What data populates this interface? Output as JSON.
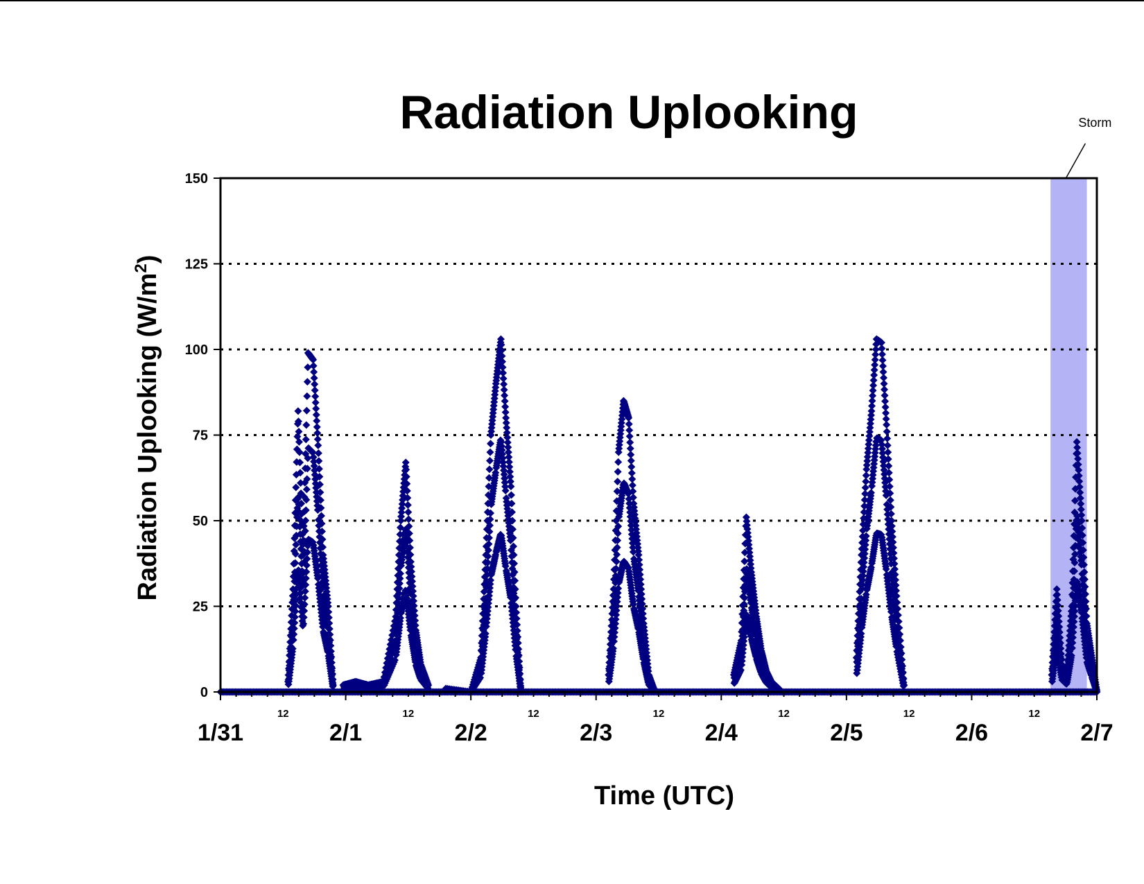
{
  "chart_data": {
    "type": "scatter",
    "title": "Radiation Uplooking",
    "xlabel": "Time (UTC)",
    "ylabel": "Radiation Uplooking (W/m",
    "ylabel_sup": "2",
    "ylabel_close": ")",
    "ylim": [
      0,
      150
    ],
    "xlim": [
      "1/31",
      "2/7"
    ],
    "yticks": [
      "0",
      "25",
      "50",
      "75",
      "100",
      "125",
      "150"
    ],
    "ytick_values": [
      0,
      25,
      50,
      75,
      100,
      125,
      150
    ],
    "xticks_major": [
      "1/31",
      "2/1",
      "2/2",
      "2/3",
      "2/4",
      "2/5",
      "2/6",
      "2/7"
    ],
    "xticks_minor": [
      "12",
      "12",
      "12",
      "12",
      "12",
      "12",
      "12"
    ],
    "gridlines": "dotted horizontal at 25, 50, 75, 100, 125",
    "legend": "none",
    "marker_color": "#000080",
    "marker": "diamond",
    "storm_shade_color": "#b3b3f5",
    "annotation": {
      "text": "Storm",
      "x_start_day": 6.63,
      "x_end_day": 6.92
    },
    "x_units": "days after 1/31 00 UTC",
    "daily_peaks": [
      {
        "day": "1/31",
        "x": [
          0.54,
          0.58,
          0.62,
          0.66,
          0.7,
          0.74,
          0.78,
          0.82,
          0.86,
          0.9
        ],
        "y": [
          3,
          30,
          82,
          40,
          99,
          97,
          72,
          40,
          25,
          2
        ]
      },
      {
        "day": "2/1",
        "x": [
          0.98,
          1.08,
          1.18,
          1.3,
          1.4,
          1.44,
          1.48,
          1.52,
          1.56,
          1.6,
          1.66
        ],
        "y": [
          2,
          3,
          2,
          3,
          22,
          50,
          67,
          38,
          18,
          8,
          2
        ]
      },
      {
        "day": "2/2",
        "x": [
          1.8,
          2.0,
          2.08,
          2.12,
          2.16,
          2.2,
          2.24,
          2.28,
          2.32,
          2.36,
          2.4
        ],
        "y": [
          1,
          0,
          10,
          40,
          75,
          90,
          103,
          80,
          60,
          25,
          0
        ]
      },
      {
        "day": "2/3",
        "x": [
          3.1,
          3.14,
          3.18,
          3.22,
          3.26,
          3.3,
          3.34,
          3.38,
          3.42,
          3.46
        ],
        "y": [
          5,
          30,
          70,
          85,
          80,
          55,
          40,
          20,
          5,
          1
        ]
      },
      {
        "day": "2/4",
        "x": [
          4.1,
          4.16,
          4.2,
          4.24,
          4.28,
          4.32,
          4.36,
          4.4,
          4.46
        ],
        "y": [
          5,
          15,
          51,
          35,
          22,
          12,
          6,
          3,
          1
        ]
      },
      {
        "day": "2/5",
        "x": [
          5.08,
          5.12,
          5.16,
          5.2,
          5.24,
          5.28,
          5.32,
          5.36,
          5.4,
          5.46
        ],
        "y": [
          10,
          40,
          65,
          82,
          103,
          102,
          78,
          50,
          28,
          2
        ]
      },
      {
        "day": "2/6",
        "x": [
          6.64,
          6.68,
          6.72,
          6.76,
          6.8,
          6.84,
          6.88,
          6.92,
          6.96,
          7.0
        ],
        "y": [
          5,
          30,
          8,
          5,
          25,
          73,
          50,
          20,
          10,
          0
        ]
      }
    ]
  }
}
